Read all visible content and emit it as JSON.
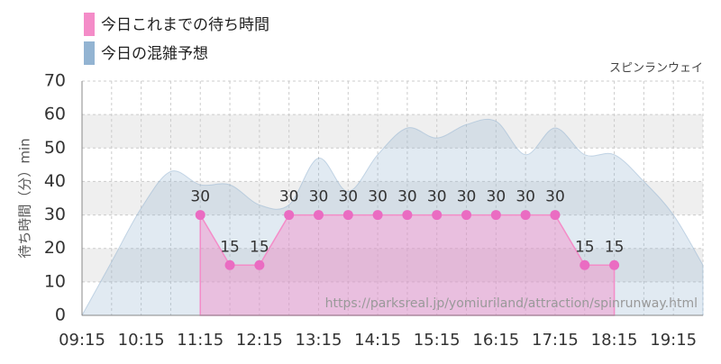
{
  "chart_data": {
    "type": "area",
    "subtitle": "スピンランウェイ",
    "y_label": "待ち時間（分）min",
    "annotation": "https://parksreal.jp/yomiuriland/attraction/spinrunway.html",
    "categories": [
      "09:15",
      null,
      "10:15",
      null,
      "11:15",
      null,
      "12:15",
      null,
      "13:15",
      null,
      "14:15",
      null,
      "15:15",
      null,
      "16:15",
      null,
      "17:15",
      null,
      "18:15",
      null,
      "19:15",
      null
    ],
    "series": [
      {
        "name": "今日これまでの待ち時間",
        "color": "#f48cc8",
        "values": [
          null,
          null,
          null,
          null,
          30,
          15,
          15,
          30,
          30,
          30,
          30,
          30,
          30,
          30,
          30,
          30,
          30,
          15,
          15,
          null,
          null,
          null
        ]
      },
      {
        "name": "今日の混雑予想",
        "color": "#93b4d2",
        "values": [
          0,
          16,
          32,
          43,
          39,
          39,
          33,
          33,
          47,
          37,
          48,
          56,
          53,
          57,
          58,
          48,
          56,
          48,
          48,
          40,
          30,
          15
        ]
      }
    ],
    "ylim": [
      0,
      70
    ],
    "yticks": [
      0,
      10,
      20,
      30,
      40,
      50,
      60,
      70
    ],
    "grid": true
  }
}
